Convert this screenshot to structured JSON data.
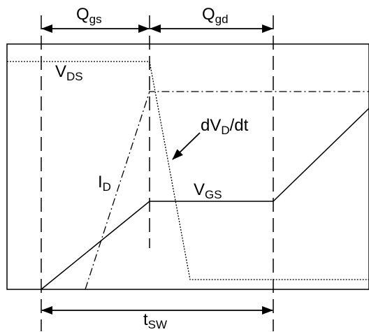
{
  "labels": {
    "qgs": {
      "main": "Q",
      "sub": "gs"
    },
    "qgd": {
      "main": "Q",
      "sub": "gd"
    },
    "vds": {
      "main": "V",
      "sub": "DS"
    },
    "vgs": {
      "main": "V",
      "sub": "GS"
    },
    "id": {
      "main": "I",
      "sub": "D"
    },
    "dvdt": {
      "pre": "dV",
      "sub": "D",
      "post": "/dt"
    },
    "tsw": {
      "main": "t",
      "sub": "SW"
    }
  },
  "colors": {
    "stroke": "#000000",
    "background": "#ffffff"
  }
}
